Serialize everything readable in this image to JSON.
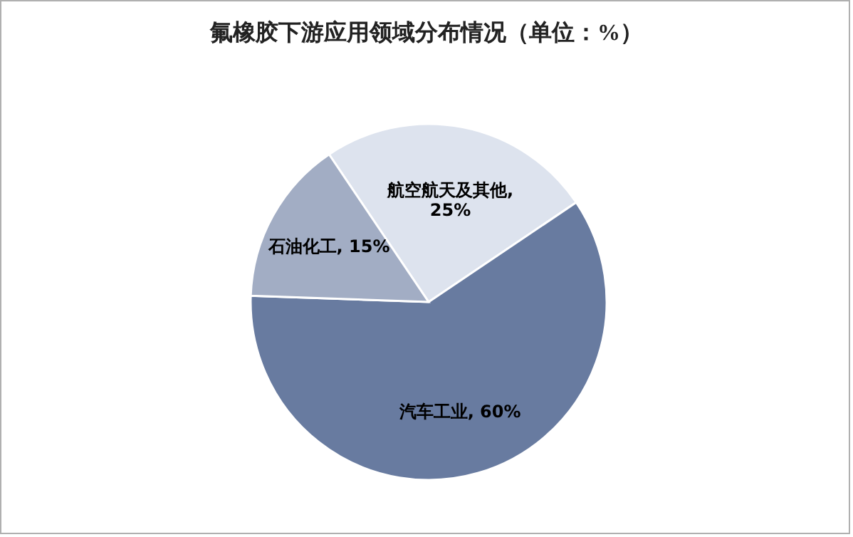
{
  "chart_data": {
    "type": "pie",
    "title": "氟橡胶下游应用领域分布情况（单位：%）",
    "categories": [
      "航空航天及其他",
      "汽车工业",
      "石油化工"
    ],
    "values": [
      25,
      60,
      15
    ],
    "colors": [
      "#dde3ee",
      "#687ba0",
      "#a2adc4"
    ],
    "value_labels": [
      ", 25%",
      ", 60%",
      ", 15%"
    ]
  }
}
